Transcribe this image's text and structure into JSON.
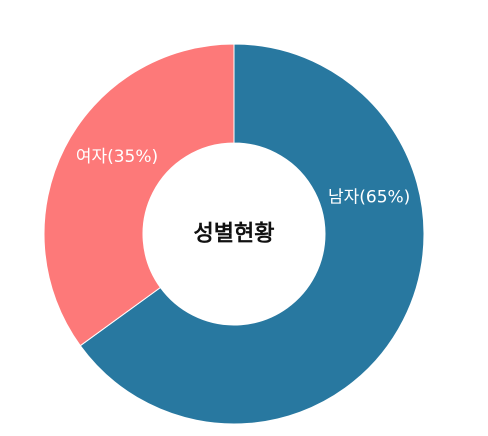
{
  "chart_data": {
    "type": "pie",
    "style": "donut",
    "center_text": "성별현황",
    "slices": [
      {
        "label": "남자(65%)",
        "value": 65,
        "color": "#2878a0"
      },
      {
        "label": "여자(35%)",
        "value": 35,
        "color": "#fd7979"
      }
    ],
    "start_angle": "12 o'clock",
    "direction": "clockwise",
    "legend": "none"
  }
}
